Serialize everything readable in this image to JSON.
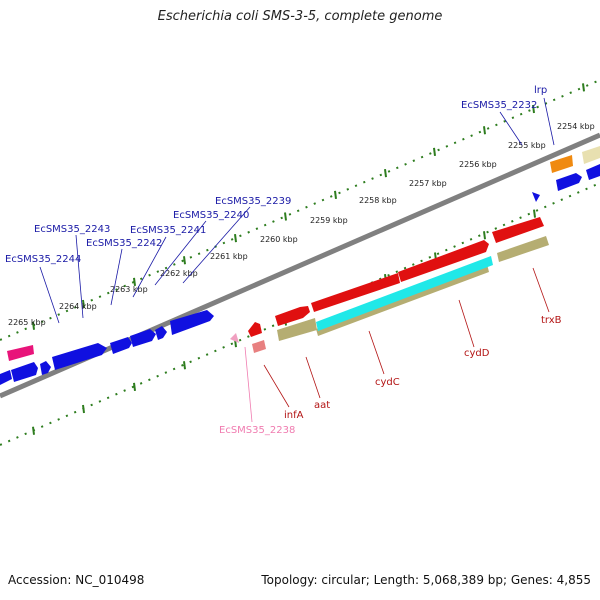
{
  "title": "Escherichia coli SMS-3-5, complete genome",
  "footer": {
    "accession": "Accession: NC_010498",
    "summary": "Topology: circular; Length: 5,068,389 bp; Genes: 4,855"
  },
  "scale_labels": [
    "2254 kbp",
    "2255 kbp",
    "2256 kbp",
    "2257 kbp",
    "2258 kbp",
    "2259 kbp",
    "2260 kbp",
    "2261 kbp",
    "2262 kbp",
    "2263 kbp",
    "2264 kbp",
    "2265 kbp"
  ],
  "gene_labels": {
    "lrp": "lrp",
    "ecsms35_2232": "EcSMS35_2232",
    "ecsms35_2239": "EcSMS35_2239",
    "ecsms35_2240": "EcSMS35_2240",
    "ecsms35_2241": "EcSMS35_2241",
    "ecsms35_2242": "EcSMS35_2242",
    "ecsms35_2243": "EcSMS35_2243",
    "ecsms35_2244": "EcSMS35_2244",
    "trxb": "trxB",
    "cydd": "cydD",
    "cydc": "cydC",
    "aat": "aat",
    "infa": "infA",
    "ecsms35_2238": "EcSMS35_2238"
  },
  "colors": {
    "backbone": "#808080",
    "ruler": "#2e7d1f",
    "forward_gene": "#1010e0",
    "reverse_gene": "#e01010",
    "reverse_gene_alt": "#e88080",
    "cds_feature": "#b5ad72",
    "cyan_feature": "#20e8e8",
    "orange_feature": "#f08a10",
    "pink_feature": "#e8147a",
    "pale_feature": "#e8e0b0"
  }
}
